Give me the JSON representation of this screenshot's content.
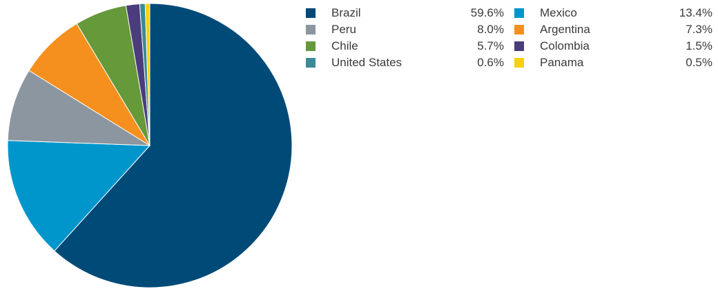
{
  "chart_data": {
    "type": "pie",
    "slices": [
      {
        "label": "Brazil",
        "value": 59.6,
        "display": "59.6%",
        "color": "#004a78"
      },
      {
        "label": "Mexico",
        "value": 13.4,
        "display": "13.4%",
        "color": "#0096cc"
      },
      {
        "label": "Peru",
        "value": 8.0,
        "display": "8.0%",
        "color": "#8c96a0"
      },
      {
        "label": "Argentina",
        "value": 7.3,
        "display": "7.3%",
        "color": "#f5901e"
      },
      {
        "label": "Chile",
        "value": 5.7,
        "display": "5.7%",
        "color": "#65993a"
      },
      {
        "label": "Colombia",
        "value": 1.5,
        "display": "1.5%",
        "color": "#4b3d7c"
      },
      {
        "label": "United States",
        "value": 0.6,
        "display": "0.6%",
        "color": "#3a8b96"
      },
      {
        "label": "Panama",
        "value": 0.5,
        "display": "0.5%",
        "color": "#f7d10c"
      }
    ],
    "legend_placement": "top-right",
    "legend_columns": 2
  }
}
